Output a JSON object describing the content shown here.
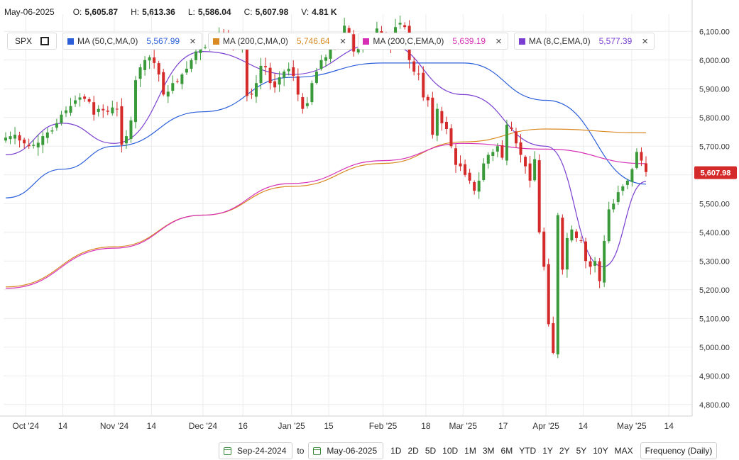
{
  "header": {
    "date": "May-06-2025",
    "open_label": "O:",
    "open": "5,605.87",
    "high_label": "H:",
    "high": "5,613.36",
    "low_label": "L:",
    "low": "5,586.04",
    "close_label": "C:",
    "close": "5,607.98",
    "volume_label": "V:",
    "volume": "4.81 K"
  },
  "legend": {
    "symbol": "SPX",
    "close_icon": "×",
    "indicators": [
      {
        "name": "MA (50,C,MA,0)",
        "value": "5,567.99",
        "color": "#2b5fd9"
      },
      {
        "name": "MA (200,C,MA,0)",
        "value": "5,746.64",
        "color": "#d98a22"
      },
      {
        "name": "MA (200,C,EMA,0)",
        "value": "5,639.19",
        "color": "#d62fb6"
      },
      {
        "name": "MA (8,C,EMA,0)",
        "value": "5,577.39",
        "color": "#7a3fd0"
      }
    ]
  },
  "toolbar": {
    "start_date": "Sep-24-2024",
    "to_label": "to",
    "end_date": "May-06-2025",
    "ranges": [
      "1D",
      "2D",
      "5D",
      "10D",
      "1M",
      "3M",
      "6M",
      "YTD",
      "1Y",
      "2Y",
      "5Y",
      "10Y",
      "MAX"
    ],
    "frequency": "Frequency (Daily)"
  },
  "chart_data": {
    "type": "candlestick",
    "y_ticks": [
      "6,100.00",
      "6,000.00",
      "5,900.00",
      "5,800.00",
      "5,700.00",
      "5,600.00",
      "5,500.00",
      "5,400.00",
      "5,300.00",
      "5,200.00",
      "5,100.00",
      "5,000.00",
      "4,900.00",
      "4,800.00"
    ],
    "ylim": [
      4760,
      6160
    ],
    "x_ticks": [
      {
        "label": "Oct '24",
        "date": "2024-10-01"
      },
      {
        "label": "14",
        "date": "2024-10-14"
      },
      {
        "label": "Nov '24",
        "date": "2024-11-01"
      },
      {
        "label": "14",
        "date": "2024-11-14"
      },
      {
        "label": "Dec '24",
        "date": "2024-12-02"
      },
      {
        "label": "16",
        "date": "2024-12-16"
      },
      {
        "label": "Jan '25",
        "date": "2025-01-02"
      },
      {
        "label": "15",
        "date": "2025-01-15"
      },
      {
        "label": "Feb '25",
        "date": "2025-02-03"
      },
      {
        "label": "18",
        "date": "2025-02-18"
      },
      {
        "label": "Mar '25",
        "date": "2025-03-03"
      },
      {
        "label": "17",
        "date": "2025-03-17"
      },
      {
        "label": "Apr '25",
        "date": "2025-04-01"
      },
      {
        "label": "14",
        "date": "2025-04-14"
      },
      {
        "label": "May '25",
        "date": "2025-05-01"
      },
      {
        "label": "14",
        "date": "2025-05-14"
      }
    ],
    "last_price_label": "5,607.98",
    "last_price": 5607.98,
    "up_color": "#3a9a3a",
    "down_color": "#d42a2a",
    "candles_close": [
      5730,
      5735,
      5740,
      5720,
      5710,
      5700,
      5705,
      5712,
      5735,
      5748,
      5755,
      5780,
      5810,
      5825,
      5840,
      5860,
      5870,
      5865,
      5855,
      5810,
      5830,
      5825,
      5820,
      5835,
      5830,
      5705,
      5735,
      5790,
      5930,
      5975,
      6000,
      6010,
      5990,
      5950,
      5880,
      5890,
      5920,
      5925,
      5950,
      5970,
      6000,
      6030,
      6050,
      6045,
      6060,
      6075,
      6090,
      6080,
      6070,
      6060,
      6050,
      6050,
      5875,
      5880,
      5920,
      5980,
      5975,
      5920,
      5905,
      5940,
      5960,
      5970,
      5945,
      5880,
      5830,
      5850,
      5920,
      5960,
      6000,
      6010,
      6050,
      6050,
      6085,
      6120,
      6095,
      6030,
      6040,
      6070,
      6060,
      6080,
      6110,
      6090,
      6070,
      6045,
      6115,
      6130,
      6115,
      6000,
      5960,
      5950,
      5870,
      5860,
      5740,
      5830,
      5780,
      5760,
      5700,
      5635,
      5630,
      5600,
      5580,
      5545,
      5580,
      5640,
      5670,
      5680,
      5700,
      5660,
      5775,
      5760,
      5710,
      5670,
      5630,
      5580,
      5655,
      5400,
      5280,
      5080,
      4980,
      5460,
      5270,
      5380,
      5410,
      5380,
      5370,
      5300,
      5280,
      5300,
      5230,
      5370,
      5480,
      5500,
      5540,
      5560,
      5580,
      5620,
      5680,
      5650,
      5610
    ],
    "series": [
      {
        "name": "MA (50,C,MA,0)",
        "x": [
          "2024-09-24",
          "2024-10-14",
          "2024-11-01",
          "2024-12-02",
          "2025-01-02",
          "2025-02-03",
          "2025-03-03",
          "2025-04-01",
          "2025-05-06"
        ],
        "y": [
          5520,
          5620,
          5700,
          5820,
          5940,
          5990,
          5990,
          5860,
          5567.99
        ]
      },
      {
        "name": "MA (200,C,MA,0)",
        "x": [
          "2024-09-24",
          "2024-11-01",
          "2024-12-02",
          "2025-01-02",
          "2025-02-03",
          "2025-03-03",
          "2025-04-01",
          "2025-05-06"
        ],
        "y": [
          5210,
          5350,
          5460,
          5560,
          5640,
          5715,
          5760,
          5746.64
        ]
      },
      {
        "name": "MA (200,C,EMA,0)",
        "x": [
          "2024-09-24",
          "2024-11-01",
          "2024-12-02",
          "2025-01-02",
          "2025-02-03",
          "2025-03-03",
          "2025-04-01",
          "2025-05-06"
        ],
        "y": [
          5205,
          5345,
          5460,
          5570,
          5650,
          5710,
          5690,
          5639.19
        ]
      },
      {
        "name": "MA (8,C,EMA,0)",
        "x": [
          "2024-09-24",
          "2024-10-14",
          "2024-11-01",
          "2024-12-02",
          "2025-01-02",
          "2025-02-03",
          "2025-03-03",
          "2025-04-01",
          "2025-04-21",
          "2025-05-06"
        ],
        "y": [
          5670,
          5780,
          5710,
          6030,
          5950,
          6060,
          5880,
          5700,
          5280,
          5577.39
        ]
      }
    ]
  }
}
